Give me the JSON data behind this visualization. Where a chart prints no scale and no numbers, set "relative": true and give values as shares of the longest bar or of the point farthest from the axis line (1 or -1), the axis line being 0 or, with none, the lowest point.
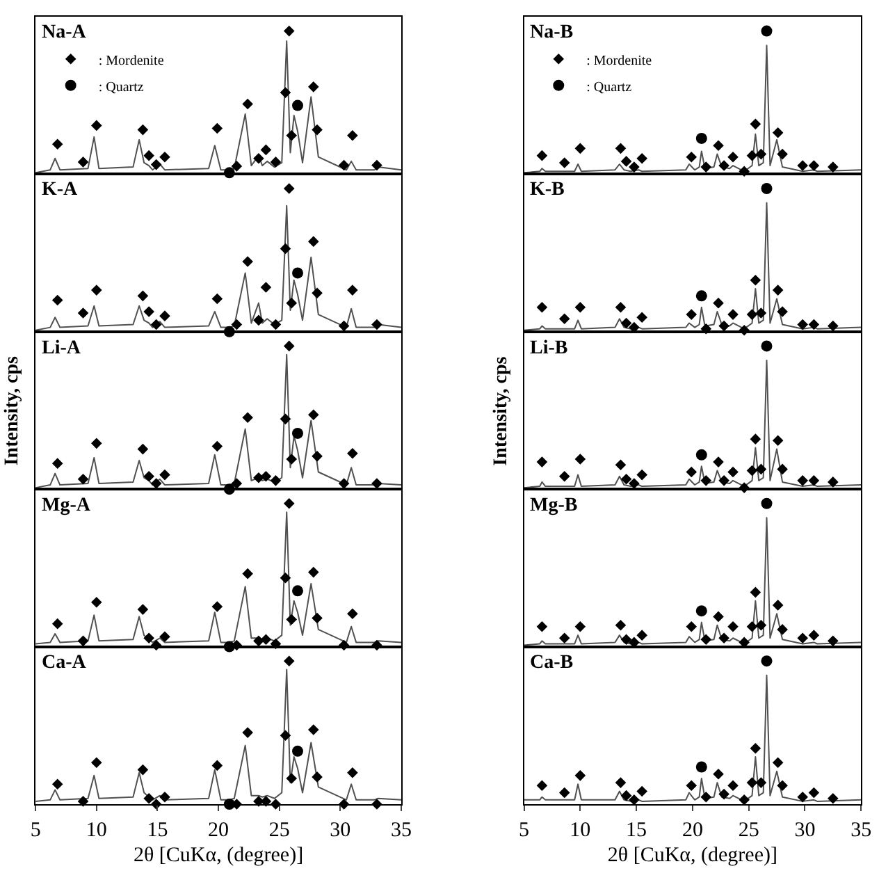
{
  "chart_data": [
    {
      "type": "line",
      "x": [
        5,
        6.2,
        6.6,
        7.0,
        9.3,
        9.8,
        10.2,
        13.0,
        13.5,
        13.9,
        14.3,
        14.6,
        15.2,
        15.6,
        19.2,
        19.7,
        20.2,
        20.9,
        21.3,
        22.2,
        22.7,
        23.3,
        23.6,
        24.0,
        24.6,
        25.2,
        25.6,
        25.9,
        26.2,
        26.5,
        26.9,
        27.6,
        28.2,
        30.5,
        30.9,
        31.3,
        32.8,
        33.1,
        35
      ],
      "relative": true,
      "xlim": [
        5,
        35
      ],
      "tick_labels": false,
      "legend": "top left",
      "annotations": [
        "Na-A"
      ],
      "series": [
        {
          "color": "#505050",
          "values": [
            0.01,
            0.03,
            0.11,
            0.03,
            0.04,
            0.26,
            0.04,
            0.05,
            0.24,
            0.08,
            0.06,
            0.03,
            0.07,
            0.03,
            0.04,
            0.2,
            0.03,
            0.03,
            0.04,
            0.42,
            0.06,
            0.13,
            0.06,
            0.09,
            0.05,
            0.08,
            0.93,
            0.15,
            0.41,
            0.3,
            0.08,
            0.54,
            0.12,
            0.03,
            0.09,
            0.03,
            0.03,
            0.05,
            0.03
          ]
        },
        {
          "type": "scatter",
          "marker": "diamond",
          "name": ": Mordenite",
          "color": "#000000",
          "x": [
            6.8,
            8.9,
            10.0,
            13.8,
            14.3,
            14.9,
            15.6,
            19.9,
            21.5,
            22.4,
            23.3,
            23.9,
            24.7,
            25.5,
            25.8,
            26.0,
            27.8,
            28.1,
            30.3,
            31.0,
            33.0
          ],
          "values": [
            0.21,
            0.085,
            0.34,
            0.31,
            0.13,
            0.067,
            0.12,
            0.32,
            0.056,
            0.49,
            0.11,
            0.17,
            0.085,
            0.57,
            1,
            0.27,
            0.61,
            0.31,
            0.063,
            0.27,
            0.063
          ]
        },
        {
          "type": "scatter",
          "marker": "circle",
          "name": ": Quartz",
          "color": "#000000",
          "x": [
            20.9,
            26.5
          ],
          "values": [
            0.01,
            0.48
          ]
        }
      ]
    },
    {
      "type": "line",
      "x": [
        5,
        6.2,
        6.6,
        7.0,
        9.3,
        9.8,
        10.2,
        13.0,
        13.5,
        13.9,
        14.3,
        14.6,
        15.2,
        15.6,
        19.2,
        19.7,
        20.2,
        20.9,
        21.3,
        22.2,
        22.7,
        23.3,
        23.6,
        24.0,
        24.6,
        25.2,
        25.6,
        25.9,
        26.2,
        26.5,
        26.9,
        27.6,
        28.2,
        30.5,
        30.9,
        31.3,
        32.8,
        33.1,
        35
      ],
      "relative": true,
      "xlim": [
        5,
        35
      ],
      "tick_labels": false,
      "annotations": [
        "K-A"
      ],
      "series": [
        {
          "color": "#505050",
          "values": [
            0.01,
            0.03,
            0.1,
            0.03,
            0.04,
            0.18,
            0.04,
            0.05,
            0.18,
            0.08,
            0.06,
            0.03,
            0.07,
            0.03,
            0.04,
            0.14,
            0.03,
            0.03,
            0.04,
            0.41,
            0.06,
            0.2,
            0.06,
            0.09,
            0.05,
            0.08,
            0.88,
            0.15,
            0.36,
            0.26,
            0.08,
            0.52,
            0.12,
            0.03,
            0.16,
            0.03,
            0.03,
            0.05,
            0.03
          ]
        },
        {
          "type": "scatter",
          "marker": "diamond",
          "color": "#000000",
          "x": [
            6.8,
            8.9,
            10.0,
            13.8,
            14.3,
            14.9,
            15.6,
            19.9,
            21.5,
            22.4,
            23.3,
            23.9,
            24.7,
            25.5,
            25.8,
            26.0,
            27.8,
            28.1,
            30.3,
            31.0,
            33.0
          ],
          "values": [
            0.22,
            0.13,
            0.29,
            0.25,
            0.14,
            0.05,
            0.11,
            0.23,
            0.05,
            0.49,
            0.08,
            0.31,
            0.05,
            0.58,
            1,
            0.2,
            0.63,
            0.27,
            0.04,
            0.29,
            0.05
          ]
        },
        {
          "type": "scatter",
          "marker": "circle",
          "color": "#000000",
          "x": [
            20.9,
            26.5
          ],
          "values": [
            0,
            0.41
          ]
        }
      ]
    },
    {
      "type": "line",
      "x": [
        5,
        6.2,
        6.6,
        7.0,
        9.3,
        9.8,
        10.2,
        13.0,
        13.5,
        13.9,
        14.3,
        14.6,
        15.2,
        15.6,
        19.2,
        19.7,
        20.2,
        20.9,
        21.3,
        22.2,
        22.7,
        23.3,
        23.6,
        24.0,
        24.6,
        25.2,
        25.6,
        25.9,
        26.2,
        26.5,
        26.9,
        27.6,
        28.2,
        30.5,
        30.9,
        31.3,
        32.8,
        33.1,
        35
      ],
      "relative": true,
      "xlim": [
        5,
        35
      ],
      "tick_labels": false,
      "ylabel": "Intensity, cps",
      "annotations": [
        "Li-A"
      ],
      "series": [
        {
          "color": "#505050",
          "values": [
            0.01,
            0.03,
            0.11,
            0.03,
            0.04,
            0.22,
            0.04,
            0.05,
            0.2,
            0.08,
            0.06,
            0.03,
            0.07,
            0.03,
            0.04,
            0.24,
            0.03,
            0.03,
            0.04,
            0.42,
            0.06,
            0.08,
            0.06,
            0.07,
            0.05,
            0.08,
            0.94,
            0.15,
            0.37,
            0.27,
            0.08,
            0.48,
            0.12,
            0.03,
            0.15,
            0.03,
            0.03,
            0.04,
            0.03
          ]
        },
        {
          "type": "scatter",
          "marker": "diamond",
          "color": "#000000",
          "x": [
            6.8,
            8.9,
            10.0,
            13.8,
            14.3,
            14.9,
            15.6,
            19.9,
            21.5,
            22.4,
            23.3,
            23.9,
            24.7,
            25.5,
            25.8,
            26.0,
            27.8,
            28.1,
            30.3,
            31.0,
            33.0
          ],
          "values": [
            0.18,
            0.07,
            0.32,
            0.28,
            0.09,
            0.04,
            0.1,
            0.3,
            0.04,
            0.5,
            0.08,
            0.09,
            0.06,
            0.49,
            1,
            0.21,
            0.52,
            0.23,
            0.04,
            0.25,
            0.04
          ]
        },
        {
          "type": "scatter",
          "marker": "circle",
          "color": "#000000",
          "x": [
            20.9,
            26.5
          ],
          "values": [
            0,
            0.39
          ]
        }
      ]
    },
    {
      "type": "line",
      "x": [
        5,
        6.2,
        6.6,
        7.0,
        9.3,
        9.8,
        10.2,
        13.0,
        13.5,
        13.9,
        14.3,
        14.6,
        15.2,
        15.6,
        19.2,
        19.7,
        20.2,
        20.9,
        21.3,
        22.2,
        22.7,
        23.3,
        23.6,
        24.0,
        24.6,
        25.2,
        25.6,
        25.9,
        26.2,
        26.5,
        26.9,
        27.6,
        28.2,
        30.5,
        30.9,
        31.3,
        32.8,
        33.1,
        35
      ],
      "relative": true,
      "xlim": [
        5,
        35
      ],
      "tick_labels": false,
      "annotations": [
        "Mg-A"
      ],
      "series": [
        {
          "color": "#505050",
          "values": [
            0.02,
            0.03,
            0.09,
            0.03,
            0.04,
            0.22,
            0.04,
            0.05,
            0.21,
            0.08,
            0.05,
            0.03,
            0.06,
            0.03,
            0.04,
            0.24,
            0.03,
            0.03,
            0.04,
            0.42,
            0.06,
            0.06,
            0.05,
            0.06,
            0.04,
            0.08,
            0.94,
            0.15,
            0.32,
            0.24,
            0.08,
            0.44,
            0.12,
            0.03,
            0.14,
            0.03,
            0.03,
            0.04,
            0.03
          ]
        },
        {
          "type": "scatter",
          "marker": "diamond",
          "color": "#000000",
          "x": [
            6.8,
            8.9,
            10.0,
            13.8,
            14.3,
            14.9,
            15.6,
            19.9,
            21.5,
            22.4,
            23.3,
            23.9,
            24.7,
            25.5,
            25.8,
            26.0,
            27.8,
            28.1,
            30.3,
            31.0,
            33.0
          ],
          "values": [
            0.16,
            0.04,
            0.31,
            0.26,
            0.06,
            0.01,
            0.07,
            0.28,
            0.01,
            0.51,
            0.04,
            0.05,
            0.02,
            0.48,
            1,
            0.19,
            0.52,
            0.2,
            0.01,
            0.23,
            0.01
          ]
        },
        {
          "type": "scatter",
          "marker": "circle",
          "color": "#000000",
          "x": [
            20.9,
            26.5
          ],
          "values": [
            0,
            0.39
          ]
        }
      ]
    },
    {
      "type": "line",
      "x": [
        5,
        6.2,
        6.6,
        7.0,
        9.3,
        9.8,
        10.2,
        13.0,
        13.5,
        13.9,
        14.3,
        14.6,
        15.2,
        15.6,
        19.2,
        19.7,
        20.2,
        20.9,
        21.3,
        22.2,
        22.7,
        23.3,
        23.6,
        24.0,
        24.6,
        25.2,
        25.6,
        25.9,
        26.2,
        26.5,
        26.9,
        27.6,
        28.2,
        30.5,
        30.9,
        31.3,
        32.8,
        33.1,
        35
      ],
      "relative": true,
      "xlim": [
        5,
        35
      ],
      "xticks": [
        5,
        10,
        15,
        20,
        25,
        30,
        35
      ],
      "tick_labels": "x",
      "xlabel": "2θ [CuKα, (degree)]",
      "annotations": [
        "Ca-A"
      ],
      "series": [
        {
          "color": "#505050",
          "values": [
            0.02,
            0.03,
            0.1,
            0.03,
            0.04,
            0.2,
            0.04,
            0.05,
            0.22,
            0.08,
            0.05,
            0.03,
            0.06,
            0.03,
            0.04,
            0.24,
            0.03,
            0.03,
            0.04,
            0.41,
            0.06,
            0.06,
            0.05,
            0.06,
            0.04,
            0.08,
            0.94,
            0.15,
            0.33,
            0.25,
            0.08,
            0.43,
            0.12,
            0.03,
            0.14,
            0.03,
            0.03,
            0.04,
            0.03
          ]
        },
        {
          "type": "scatter",
          "marker": "diamond",
          "color": "#000000",
          "x": [
            6.8,
            8.9,
            10.0,
            13.8,
            14.3,
            14.9,
            15.6,
            19.9,
            21.5,
            22.4,
            23.3,
            23.9,
            24.7,
            25.5,
            25.8,
            26.0,
            27.8,
            28.1,
            30.3,
            31.0,
            33.0
          ],
          "values": [
            0.14,
            0.02,
            0.29,
            0.24,
            0.04,
            0,
            0.05,
            0.27,
            0,
            0.5,
            0.02,
            0.02,
            0,
            0.48,
            1,
            0.18,
            0.52,
            0.19,
            0,
            0.22,
            0
          ]
        },
        {
          "type": "scatter",
          "marker": "circle",
          "color": "#000000",
          "x": [
            20.9,
            26.5
          ],
          "values": [
            0,
            0.37
          ]
        }
      ]
    },
    {
      "type": "line",
      "x": [
        5,
        6.4,
        6.6,
        6.9,
        9.5,
        9.8,
        10.1,
        13.1,
        13.5,
        13.9,
        14.5,
        15.2,
        15.5,
        19.4,
        19.7,
        20.2,
        20.6,
        20.8,
        21.1,
        21.9,
        22.2,
        22.6,
        23.3,
        23.6,
        24.6,
        25.3,
        25.6,
        25.9,
        26.3,
        26.6,
        26.9,
        27.5,
        28.0,
        29.8,
        30.8,
        31.1,
        35
      ],
      "relative": true,
      "xlim": [
        5,
        35
      ],
      "tick_labels": false,
      "legend": "top left",
      "annotations": [
        "Na-B"
      ],
      "series": [
        {
          "color": "#505050",
          "values": [
            0.01,
            0.02,
            0.04,
            0.02,
            0.02,
            0.07,
            0.02,
            0.03,
            0.07,
            0.03,
            0.02,
            0.03,
            0.02,
            0.03,
            0.07,
            0.03,
            0.05,
            0.16,
            0.04,
            0.05,
            0.14,
            0.05,
            0.04,
            0.06,
            0.02,
            0.06,
            0.28,
            0.06,
            0.08,
            0.9,
            0.06,
            0.24,
            0.05,
            0.02,
            0.03,
            0.02,
            0.03
          ]
        },
        {
          "type": "scatter",
          "marker": "diamond",
          "name": ": Mordenite",
          "color": "#000000",
          "x": [
            6.6,
            8.6,
            10.0,
            13.6,
            14.1,
            14.8,
            15.5,
            19.9,
            21.2,
            22.3,
            22.8,
            23.6,
            24.6,
            25.3,
            25.6,
            26.1,
            27.6,
            28.0,
            29.8,
            30.8,
            32.5
          ],
          "values": [
            0.13,
            0.08,
            0.18,
            0.18,
            0.09,
            0.05,
            0.11,
            0.12,
            0.05,
            0.2,
            0.06,
            0.12,
            0.02,
            0.13,
            0.35,
            0.14,
            0.29,
            0.14,
            0.06,
            0.06,
            0.05
          ]
        },
        {
          "type": "scatter",
          "marker": "circle",
          "name": ": Quartz",
          "color": "#000000",
          "x": [
            20.8,
            26.6
          ],
          "values": [
            0.25,
            1
          ]
        }
      ]
    },
    {
      "type": "line",
      "x": [
        5,
        6.4,
        6.6,
        6.9,
        9.5,
        9.8,
        10.1,
        13.1,
        13.5,
        13.9,
        14.5,
        15.2,
        15.5,
        19.4,
        19.7,
        20.2,
        20.6,
        20.8,
        21.1,
        21.9,
        22.2,
        22.6,
        23.3,
        23.6,
        24.6,
        25.3,
        25.6,
        25.9,
        26.3,
        26.6,
        26.9,
        27.5,
        28.0,
        29.8,
        30.8,
        31.1,
        35
      ],
      "relative": true,
      "xlim": [
        5,
        35
      ],
      "tick_labels": false,
      "annotations": [
        "K-B"
      ],
      "series": [
        {
          "color": "#505050",
          "values": [
            0.01,
            0.02,
            0.04,
            0.02,
            0.02,
            0.08,
            0.02,
            0.03,
            0.09,
            0.03,
            0.02,
            0.03,
            0.02,
            0.03,
            0.06,
            0.03,
            0.05,
            0.17,
            0.04,
            0.05,
            0.14,
            0.05,
            0.04,
            0.06,
            0.02,
            0.06,
            0.3,
            0.06,
            0.08,
            0.9,
            0.06,
            0.23,
            0.05,
            0.02,
            0.03,
            0.02,
            0.03
          ]
        },
        {
          "type": "scatter",
          "marker": "diamond",
          "color": "#000000",
          "x": [
            6.6,
            8.6,
            10.0,
            13.6,
            14.1,
            14.8,
            15.5,
            19.9,
            21.2,
            22.3,
            22.8,
            23.6,
            24.6,
            25.3,
            25.6,
            26.1,
            27.6,
            28.0,
            29.8,
            30.8,
            32.5
          ],
          "values": [
            0.17,
            0.09,
            0.17,
            0.17,
            0.06,
            0.03,
            0.1,
            0.12,
            0.02,
            0.2,
            0.04,
            0.12,
            0.01,
            0.12,
            0.36,
            0.13,
            0.29,
            0.14,
            0.05,
            0.05,
            0.04
          ]
        },
        {
          "type": "scatter",
          "marker": "circle",
          "color": "#000000",
          "x": [
            20.8,
            26.6
          ],
          "values": [
            0.25,
            1
          ]
        }
      ]
    },
    {
      "type": "line",
      "x": [
        5,
        6.4,
        6.6,
        6.9,
        9.5,
        9.8,
        10.1,
        13.1,
        13.5,
        13.9,
        14.5,
        15.2,
        15.5,
        19.4,
        19.7,
        20.2,
        20.6,
        20.8,
        21.1,
        21.9,
        22.2,
        22.6,
        23.3,
        23.6,
        24.6,
        25.3,
        25.6,
        25.9,
        26.3,
        26.6,
        26.9,
        27.5,
        28.0,
        29.8,
        30.8,
        31.1,
        35
      ],
      "relative": true,
      "xlim": [
        5,
        35
      ],
      "tick_labels": false,
      "ylabel": "Intensity, cps",
      "annotations": [
        "Li-B"
      ],
      "series": [
        {
          "color": "#505050",
          "values": [
            0.01,
            0.02,
            0.05,
            0.02,
            0.02,
            0.1,
            0.02,
            0.03,
            0.09,
            0.03,
            0.02,
            0.03,
            0.02,
            0.03,
            0.07,
            0.03,
            0.05,
            0.16,
            0.04,
            0.05,
            0.13,
            0.05,
            0.04,
            0.06,
            0.02,
            0.06,
            0.29,
            0.06,
            0.08,
            0.9,
            0.06,
            0.28,
            0.05,
            0.02,
            0.03,
            0.02,
            0.03
          ]
        },
        {
          "type": "scatter",
          "marker": "diamond",
          "color": "#000000",
          "x": [
            6.6,
            8.6,
            10.0,
            13.6,
            14.1,
            14.8,
            15.5,
            19.9,
            21.2,
            22.3,
            22.8,
            23.6,
            24.6,
            25.3,
            25.6,
            26.1,
            27.6,
            28.0,
            29.8,
            30.8,
            32.5
          ],
          "values": [
            0.19,
            0.09,
            0.21,
            0.17,
            0.07,
            0.04,
            0.1,
            0.12,
            0.06,
            0.19,
            0.06,
            0.12,
            0.01,
            0.13,
            0.35,
            0.14,
            0.34,
            0.14,
            0.06,
            0.06,
            0.05
          ]
        },
        {
          "type": "scatter",
          "marker": "circle",
          "color": "#000000",
          "x": [
            20.8,
            26.6
          ],
          "values": [
            0.24,
            1
          ]
        }
      ]
    },
    {
      "type": "line",
      "x": [
        5,
        6.4,
        6.6,
        6.9,
        9.5,
        9.8,
        10.1,
        13.1,
        13.5,
        13.9,
        14.5,
        15.2,
        15.5,
        19.4,
        19.7,
        20.2,
        20.6,
        20.8,
        21.1,
        21.9,
        22.2,
        22.6,
        23.3,
        23.6,
        24.6,
        25.3,
        25.6,
        25.9,
        26.3,
        26.6,
        26.9,
        27.5,
        28.0,
        29.8,
        30.8,
        31.1,
        35
      ],
      "relative": true,
      "xlim": [
        5,
        35
      ],
      "tick_labels": false,
      "annotations": [
        "Mg-B"
      ],
      "series": [
        {
          "color": "#505050",
          "values": [
            0.01,
            0.02,
            0.04,
            0.02,
            0.02,
            0.08,
            0.02,
            0.03,
            0.08,
            0.03,
            0.02,
            0.03,
            0.02,
            0.03,
            0.07,
            0.03,
            0.05,
            0.17,
            0.04,
            0.05,
            0.15,
            0.05,
            0.04,
            0.06,
            0.02,
            0.06,
            0.32,
            0.06,
            0.08,
            0.9,
            0.06,
            0.23,
            0.05,
            0.02,
            0.03,
            0.02,
            0.03
          ]
        },
        {
          "type": "scatter",
          "marker": "diamond",
          "color": "#000000",
          "x": [
            6.6,
            8.6,
            10.0,
            13.6,
            14.1,
            14.8,
            15.5,
            19.9,
            21.2,
            22.3,
            22.8,
            23.6,
            24.6,
            25.3,
            25.6,
            26.1,
            27.6,
            28.0,
            29.8,
            30.8,
            32.5
          ],
          "values": [
            0.14,
            0.06,
            0.14,
            0.15,
            0.05,
            0.03,
            0.08,
            0.14,
            0.05,
            0.21,
            0.06,
            0.14,
            0.03,
            0.14,
            0.38,
            0.15,
            0.29,
            0.12,
            0.06,
            0.08,
            0.04
          ]
        },
        {
          "type": "scatter",
          "marker": "circle",
          "color": "#000000",
          "x": [
            20.8,
            26.6
          ],
          "values": [
            0.25,
            1
          ]
        }
      ]
    },
    {
      "type": "line",
      "x": [
        5,
        6.4,
        6.6,
        6.9,
        9.5,
        9.8,
        10.1,
        13.1,
        13.5,
        13.9,
        14.5,
        15.2,
        15.5,
        19.4,
        19.7,
        20.2,
        20.6,
        20.8,
        21.1,
        21.9,
        22.2,
        22.6,
        23.3,
        23.6,
        24.6,
        25.3,
        25.6,
        25.9,
        26.3,
        26.6,
        26.9,
        27.5,
        28.0,
        29.8,
        30.8,
        31.1,
        35
      ],
      "relative": true,
      "xlim": [
        5,
        35
      ],
      "xticks": [
        5,
        10,
        15,
        20,
        25,
        30,
        35
      ],
      "tick_labels": "x",
      "xlabel": "2θ [CuKα, (degree)]",
      "annotations": [
        "Ca-B"
      ],
      "series": [
        {
          "color": "#505050",
          "values": [
            0.03,
            0.03,
            0.05,
            0.03,
            0.03,
            0.14,
            0.03,
            0.03,
            0.09,
            0.03,
            0.02,
            0.03,
            0.02,
            0.03,
            0.08,
            0.03,
            0.05,
            0.18,
            0.04,
            0.05,
            0.15,
            0.05,
            0.04,
            0.06,
            0.02,
            0.06,
            0.33,
            0.06,
            0.08,
            0.9,
            0.06,
            0.23,
            0.05,
            0.02,
            0.03,
            0.02,
            0.03
          ]
        },
        {
          "type": "scatter",
          "marker": "diamond",
          "color": "#000000",
          "x": [
            6.6,
            8.6,
            10.0,
            13.6,
            14.1,
            14.8,
            15.5,
            19.9,
            21.2,
            22.3,
            22.8,
            23.6,
            24.6,
            25.3,
            25.6,
            26.1,
            27.6,
            28.0,
            29.8,
            30.8,
            32.5
          ],
          "values": [
            0.13,
            0.08,
            0.2,
            0.15,
            0.06,
            0.03,
            0.09,
            0.13,
            0.05,
            0.21,
            0.07,
            0.13,
            0.03,
            0.15,
            0.39,
            0.15,
            0.29,
            0.13,
            0.05,
            0.08,
            0.04
          ]
        },
        {
          "type": "scatter",
          "marker": "circle",
          "color": "#000000",
          "x": [
            20.8,
            26.6
          ],
          "values": [
            0.26,
            1
          ]
        }
      ]
    }
  ]
}
